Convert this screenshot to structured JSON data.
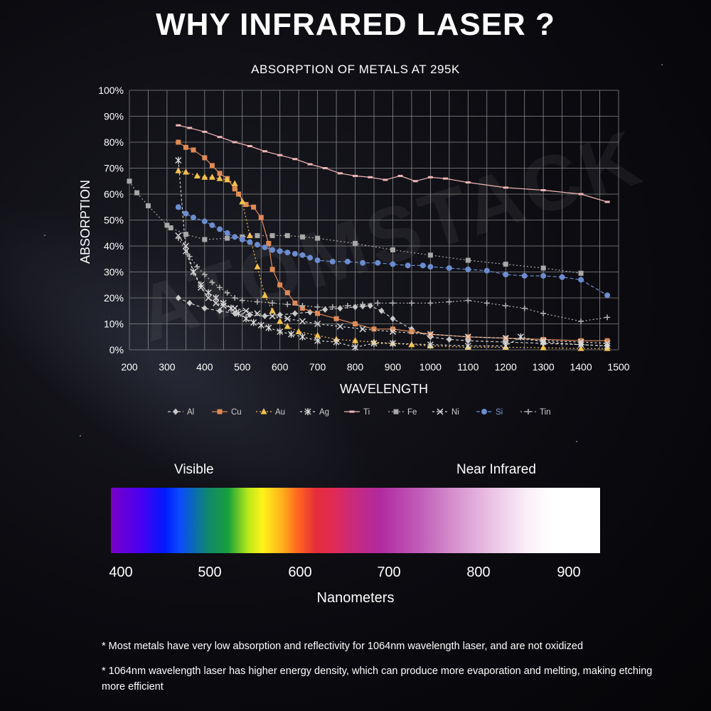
{
  "header": {
    "title": "WHY INFRARED LASER ?"
  },
  "watermark": "ATOMSTACK",
  "chart_data": {
    "type": "line",
    "title": "ABSORPTION OF METALS AT 295K",
    "xlabel": "WAVELENGTH",
    "ylabel": "ABSORPTION",
    "xlim": [
      200,
      1500
    ],
    "ylim": [
      0,
      100
    ],
    "x_ticks": [
      "200",
      "300",
      "400",
      "500",
      "600",
      "700",
      "800",
      "900",
      "1000",
      "1100",
      "1200",
      "1300",
      "1400",
      "1500"
    ],
    "y_ticks": [
      "0%",
      "10%",
      "20%",
      "30%",
      "40%",
      "50%",
      "60%",
      "70%",
      "80%",
      "90%",
      "100%"
    ],
    "grid": true,
    "legend_position": "bottom",
    "series": [
      {
        "name": "Al",
        "color": "#c9c9c9",
        "marker": "diamond",
        "dash": "4 3",
        "points": [
          [
            330,
            20
          ],
          [
            360,
            18
          ],
          [
            400,
            16
          ],
          [
            440,
            15
          ],
          [
            480,
            14
          ],
          [
            520,
            13.5
          ],
          [
            560,
            13
          ],
          [
            600,
            13.5
          ],
          [
            640,
            14
          ],
          [
            680,
            14.5
          ],
          [
            720,
            15.5
          ],
          [
            760,
            16
          ],
          [
            800,
            16.5
          ],
          [
            820,
            16.8
          ],
          [
            840,
            17
          ],
          [
            870,
            15
          ],
          [
            900,
            12
          ],
          [
            950,
            8
          ],
          [
            1000,
            5
          ],
          [
            1050,
            4
          ],
          [
            1100,
            3.5
          ],
          [
            1200,
            3
          ],
          [
            1300,
            2.5
          ],
          [
            1400,
            2
          ],
          [
            1470,
            1.5
          ]
        ]
      },
      {
        "name": "Cu",
        "color": "#e08a55",
        "marker": "square",
        "dash": "",
        "points": [
          [
            330,
            80
          ],
          [
            350,
            78
          ],
          [
            370,
            77
          ],
          [
            400,
            74
          ],
          [
            420,
            71
          ],
          [
            440,
            68
          ],
          [
            460,
            66
          ],
          [
            480,
            62
          ],
          [
            490,
            60
          ],
          [
            510,
            56
          ],
          [
            530,
            55
          ],
          [
            550,
            51
          ],
          [
            570,
            41
          ],
          [
            580,
            31
          ],
          [
            600,
            25
          ],
          [
            620,
            22
          ],
          [
            640,
            18
          ],
          [
            660,
            16
          ],
          [
            700,
            14
          ],
          [
            750,
            12
          ],
          [
            800,
            10
          ],
          [
            850,
            8
          ],
          [
            900,
            8
          ],
          [
            950,
            7
          ],
          [
            1000,
            6
          ],
          [
            1100,
            5
          ],
          [
            1200,
            4.5
          ],
          [
            1300,
            4
          ],
          [
            1400,
            3.5
          ],
          [
            1470,
            3.5
          ]
        ]
      },
      {
        "name": "Au",
        "color": "#f3c24a",
        "marker": "triangle",
        "dash": "2 3",
        "points": [
          [
            330,
            69
          ],
          [
            350,
            68.5
          ],
          [
            380,
            67
          ],
          [
            400,
            66.5
          ],
          [
            420,
            66.5
          ],
          [
            440,
            66
          ],
          [
            460,
            65.5
          ],
          [
            480,
            64
          ],
          [
            500,
            57
          ],
          [
            520,
            44
          ],
          [
            540,
            32
          ],
          [
            560,
            21
          ],
          [
            580,
            15
          ],
          [
            600,
            11
          ],
          [
            620,
            9
          ],
          [
            650,
            7
          ],
          [
            700,
            5.5
          ],
          [
            750,
            4
          ],
          [
            800,
            3.5
          ],
          [
            850,
            3
          ],
          [
            900,
            2.5
          ],
          [
            950,
            2
          ],
          [
            1000,
            1.5
          ],
          [
            1100,
            1
          ],
          [
            1200,
            1
          ],
          [
            1300,
            0.8
          ],
          [
            1400,
            0.5
          ],
          [
            1470,
            0.5
          ]
        ]
      },
      {
        "name": "Ag",
        "color": "#d8d8d8",
        "marker": "star",
        "dash": "3 3",
        "points": [
          [
            330,
            73
          ],
          [
            350,
            38
          ],
          [
            370,
            30
          ],
          [
            390,
            25
          ],
          [
            410,
            22
          ],
          [
            430,
            20
          ],
          [
            450,
            18
          ],
          [
            470,
            16
          ],
          [
            490,
            14
          ],
          [
            510,
            12
          ],
          [
            530,
            10.5
          ],
          [
            550,
            9.5
          ],
          [
            570,
            8.5
          ],
          [
            600,
            7
          ],
          [
            630,
            6
          ],
          [
            660,
            5
          ],
          [
            700,
            3.5
          ],
          [
            750,
            3
          ],
          [
            800,
            1
          ],
          [
            850,
            2.5
          ],
          [
            900,
            2.5
          ],
          [
            1000,
            2
          ],
          [
            1100,
            1.5
          ],
          [
            1200,
            1.5
          ],
          [
            1240,
            5
          ],
          [
            1300,
            3
          ],
          [
            1400,
            2
          ],
          [
            1470,
            1.5
          ]
        ]
      },
      {
        "name": "Ti",
        "color": "#f2b7b7",
        "marker": "dash",
        "dash": "",
        "points": [
          [
            330,
            86.5
          ],
          [
            360,
            85.5
          ],
          [
            400,
            84
          ],
          [
            440,
            82
          ],
          [
            480,
            80
          ],
          [
            520,
            78.5
          ],
          [
            560,
            76.5
          ],
          [
            600,
            75
          ],
          [
            640,
            73.5
          ],
          [
            680,
            71.5
          ],
          [
            720,
            70
          ],
          [
            760,
            68
          ],
          [
            800,
            67
          ],
          [
            840,
            66.5
          ],
          [
            880,
            65.5
          ],
          [
            920,
            67
          ],
          [
            960,
            65
          ],
          [
            1000,
            66.5
          ],
          [
            1040,
            66
          ],
          [
            1100,
            64.5
          ],
          [
            1200,
            62.5
          ],
          [
            1300,
            61.5
          ],
          [
            1400,
            60
          ],
          [
            1470,
            57
          ]
        ]
      },
      {
        "name": "Fe",
        "color": "#a8a8a8",
        "marker": "square",
        "dash": "2 3",
        "points": [
          [
            200,
            65
          ],
          [
            220,
            60.5
          ],
          [
            250,
            55.5
          ],
          [
            300,
            48
          ],
          [
            310,
            47
          ],
          [
            350,
            44.5
          ],
          [
            400,
            42.5
          ],
          [
            460,
            43
          ],
          [
            500,
            43.5
          ],
          [
            540,
            44
          ],
          [
            580,
            44
          ],
          [
            620,
            44
          ],
          [
            660,
            43.5
          ],
          [
            700,
            43
          ],
          [
            800,
            41
          ],
          [
            900,
            38.5
          ],
          [
            1000,
            36.5
          ],
          [
            1100,
            34.5
          ],
          [
            1200,
            33
          ],
          [
            1300,
            31.5
          ],
          [
            1400,
            29.5
          ]
        ]
      },
      {
        "name": "Ni",
        "color": "#d8d8d8",
        "marker": "cross",
        "dash": "3 3",
        "points": [
          [
            330,
            44
          ],
          [
            350,
            40
          ],
          [
            370,
            30
          ],
          [
            390,
            24
          ],
          [
            410,
            20
          ],
          [
            430,
            18
          ],
          [
            450,
            17
          ],
          [
            480,
            16
          ],
          [
            510,
            15
          ],
          [
            540,
            14
          ],
          [
            580,
            13
          ],
          [
            620,
            12
          ],
          [
            660,
            11
          ],
          [
            700,
            10
          ],
          [
            760,
            9
          ],
          [
            820,
            8
          ],
          [
            900,
            7
          ],
          [
            1000,
            6
          ],
          [
            1100,
            5
          ],
          [
            1200,
            4.5
          ],
          [
            1300,
            3.5
          ],
          [
            1400,
            3
          ],
          [
            1470,
            2.5
          ]
        ]
      },
      {
        "name": "Si",
        "color": "#6b8ccf",
        "marker": "circle",
        "dash": "5 3",
        "points": [
          [
            330,
            55
          ],
          [
            350,
            52.5
          ],
          [
            370,
            51
          ],
          [
            400,
            49.5
          ],
          [
            420,
            48
          ],
          [
            440,
            46.5
          ],
          [
            460,
            45
          ],
          [
            480,
            43.5
          ],
          [
            500,
            42.5
          ],
          [
            520,
            41.5
          ],
          [
            540,
            40.5
          ],
          [
            560,
            39.5
          ],
          [
            580,
            38.5
          ],
          [
            600,
            38
          ],
          [
            620,
            37.5
          ],
          [
            640,
            37
          ],
          [
            660,
            36.5
          ],
          [
            680,
            35.5
          ],
          [
            700,
            34.5
          ],
          [
            740,
            34
          ],
          [
            780,
            34
          ],
          [
            820,
            33.5
          ],
          [
            860,
            33.5
          ],
          [
            900,
            33
          ],
          [
            940,
            32.5
          ],
          [
            980,
            32.5
          ],
          [
            1000,
            32
          ],
          [
            1050,
            31.5
          ],
          [
            1100,
            31
          ],
          [
            1150,
            30.5
          ],
          [
            1200,
            29
          ],
          [
            1250,
            28.5
          ],
          [
            1300,
            28.5
          ],
          [
            1350,
            28
          ],
          [
            1400,
            27
          ],
          [
            1470,
            21
          ]
        ]
      },
      {
        "name": "Tin",
        "color": "#b5b5b5",
        "marker": "plus",
        "dash": "2 3",
        "points": [
          [
            330,
            43
          ],
          [
            360,
            36
          ],
          [
            380,
            32
          ],
          [
            400,
            29
          ],
          [
            420,
            26
          ],
          [
            440,
            24
          ],
          [
            460,
            22
          ],
          [
            480,
            20
          ],
          [
            500,
            19
          ],
          [
            540,
            18.5
          ],
          [
            580,
            18
          ],
          [
            620,
            17.5
          ],
          [
            660,
            17
          ],
          [
            700,
            16.5
          ],
          [
            740,
            16.5
          ],
          [
            780,
            17
          ],
          [
            820,
            17.5
          ],
          [
            860,
            18
          ],
          [
            900,
            18
          ],
          [
            950,
            18
          ],
          [
            1000,
            18
          ],
          [
            1050,
            18.5
          ],
          [
            1100,
            19
          ],
          [
            1150,
            18
          ],
          [
            1200,
            17
          ],
          [
            1250,
            16
          ],
          [
            1300,
            14
          ],
          [
            1400,
            11
          ],
          [
            1470,
            12.5
          ]
        ]
      }
    ]
  },
  "spectrum": {
    "label_visible": "Visible",
    "label_nir": "Near Infrared",
    "ticks": [
      "400",
      "500",
      "600",
      "700",
      "800",
      "900"
    ],
    "axis_label": "Nanometers"
  },
  "notes": {
    "note_1": "* Most metals have very low absorption and reflectivity for 1064nm wavelength laser, and are not oxidized",
    "note_2": "* 1064nm wavelength laser has higher energy density, which can produce more evaporation and melting, making etching more efficient"
  }
}
